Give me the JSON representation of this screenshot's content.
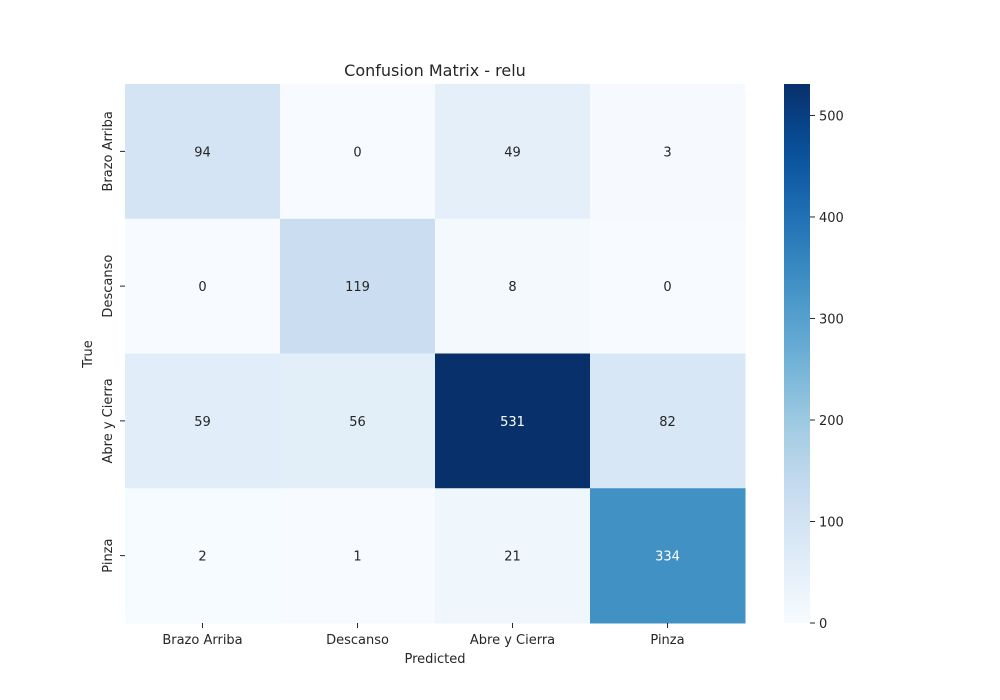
{
  "chart_data": {
    "type": "heatmap",
    "title": "Confusion Matrix - relu",
    "xlabel": "Predicted",
    "ylabel": "True",
    "x_categories": [
      "Brazo Arriba",
      "Descanso",
      "Abre y Cierra",
      "Pinza"
    ],
    "y_categories": [
      "Brazo Arriba",
      "Descanso",
      "Abre y Cierra",
      "Pinza"
    ],
    "values": [
      [
        94,
        0,
        49,
        3
      ],
      [
        0,
        119,
        8,
        0
      ],
      [
        59,
        56,
        531,
        82
      ],
      [
        2,
        1,
        21,
        334
      ]
    ],
    "colormap": "Blues",
    "colorbar": {
      "range": [
        0,
        531
      ],
      "ticks": [
        0,
        100,
        200,
        300,
        400,
        500
      ]
    }
  }
}
